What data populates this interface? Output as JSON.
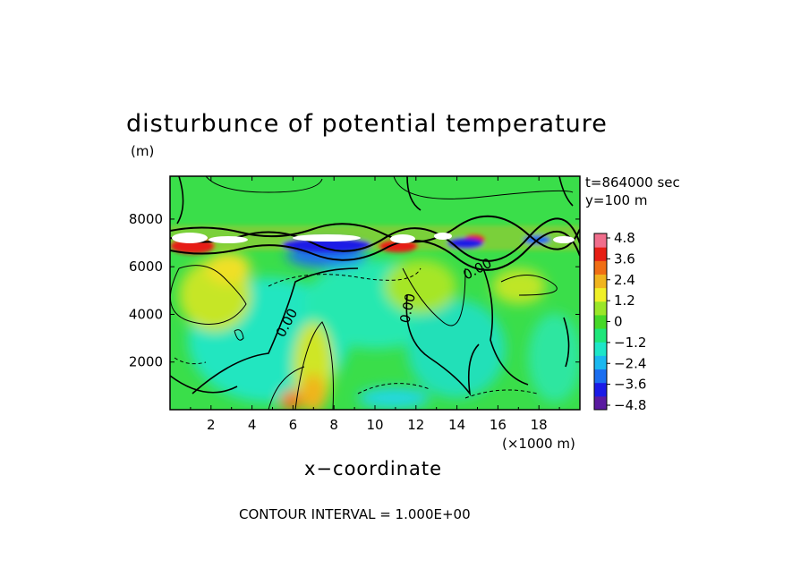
{
  "title": "disturbunce of potential temperature",
  "y_unit": "(m)",
  "time_label": "t=864000 sec",
  "y_slice_label": "y=100 m",
  "x_unit": "(×1000 m)",
  "xlabel": "x−coordinate",
  "contour_interval": "CONTOUR INTERVAL = 1.000E+00",
  "chart_data": {
    "type": "heatmap",
    "title": "disturbunce of potential temperature",
    "xlabel": "x−coordinate",
    "ylabel": "",
    "x_unit": "(×1000 m)",
    "y_unit": "(m)",
    "xlim": [
      0,
      20
    ],
    "ylim": [
      0,
      9800
    ],
    "xticks": [
      2,
      4,
      6,
      8,
      10,
      12,
      14,
      16,
      18
    ],
    "yticks": [
      2000,
      4000,
      6000,
      8000
    ],
    "ytick_labels": [
      "2000",
      "4000",
      "6000",
      "8000"
    ],
    "contour_interval": 1.0,
    "contour_labels": [
      "0.00",
      "0.00",
      "0.00"
    ],
    "colorbar": {
      "ticks": [
        "4.8",
        "3.6",
        "2.4",
        "1.2",
        "0",
        "−1.2",
        "−2.4",
        "−3.6",
        "−4.8"
      ],
      "range": [
        -4.8,
        4.8
      ],
      "colors": [
        "#5a1aa0",
        "#1a1ae6",
        "#1a6ef0",
        "#1ab8f0",
        "#1ee6c8",
        "#1ee67a",
        "#46d828",
        "#9ae628",
        "#f0f028",
        "#f0b41e",
        "#f06e14",
        "#e61e14",
        "#f06e8c"
      ]
    },
    "background_color": "#3ade4a",
    "grid": false
  }
}
